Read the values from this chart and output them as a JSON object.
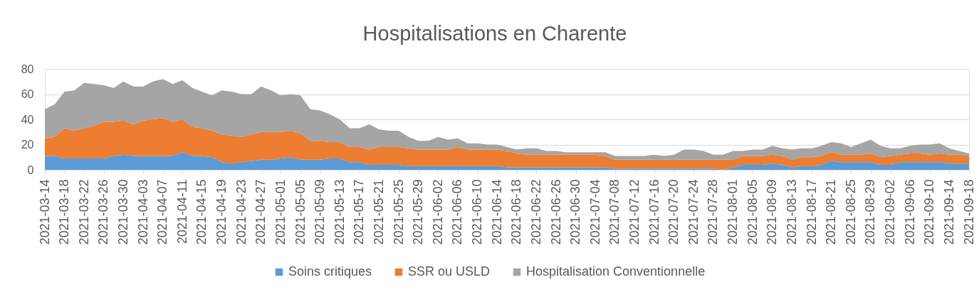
{
  "chart_data": {
    "type": "area",
    "title": "Hospitalisations en Charente",
    "stacked": true,
    "grid": "y",
    "legend": "bottom",
    "x": [
      "2021-03-14",
      "2021-03-16",
      "2021-03-18",
      "2021-03-20",
      "2021-03-22",
      "2021-03-24",
      "2021-03-26",
      "2021-03-28",
      "2021-03-30",
      "2021-04-01",
      "2021-04-03",
      "2021-04-05",
      "2021-04-07",
      "2021-04-09",
      "2021-04-11",
      "2021-04-13",
      "2021-04-15",
      "2021-04-17",
      "2021-04-19",
      "2021-04-21",
      "2021-04-23",
      "2021-04-25",
      "2021-04-27",
      "2021-04-29",
      "2021-05-01",
      "2021-05-03",
      "2021-05-05",
      "2021-05-07",
      "2021-05-09",
      "2021-05-11",
      "2021-05-13",
      "2021-05-15",
      "2021-05-17",
      "2021-05-19",
      "2021-05-21",
      "2021-05-23",
      "2021-05-25",
      "2021-05-27",
      "2021-05-29",
      "2021-05-31",
      "2021-06-02",
      "2021-06-04",
      "2021-06-06",
      "2021-06-08",
      "2021-06-10",
      "2021-06-12",
      "2021-06-14",
      "2021-06-16",
      "2021-06-18",
      "2021-06-20",
      "2021-06-22",
      "2021-06-24",
      "2021-06-26",
      "2021-06-28",
      "2021-06-30",
      "2021-07-02",
      "2021-07-04",
      "2021-07-06",
      "2021-07-08",
      "2021-07-10",
      "2021-07-12",
      "2021-07-14",
      "2021-07-16",
      "2021-07-18",
      "2021-07-20",
      "2021-07-22",
      "2021-07-24",
      "2021-07-26",
      "2021-07-28",
      "2021-07-30",
      "2021-08-01",
      "2021-08-03",
      "2021-08-05",
      "2021-08-07",
      "2021-08-09",
      "2021-08-11",
      "2021-08-13",
      "2021-08-15",
      "2021-08-17",
      "2021-08-19",
      "2021-08-21",
      "2021-08-23",
      "2021-08-25",
      "2021-08-27",
      "2021-08-29",
      "2021-08-31",
      "2021-09-02",
      "2021-09-04",
      "2021-09-06",
      "2021-09-08",
      "2021-09-10",
      "2021-09-12",
      "2021-09-14",
      "2021-09-16",
      "2021-09-18"
    ],
    "xlim": [
      "2021-03-14",
      "2021-09-18"
    ],
    "xticks": [
      "2021-03-14",
      "2021-03-18",
      "2021-03-22",
      "2021-03-26",
      "2021-03-30",
      "2021-04-03",
      "2021-04-07",
      "2021-04-11",
      "2021-04-15",
      "2021-04-19",
      "2021-04-23",
      "2021-04-27",
      "2021-05-01",
      "2021-05-05",
      "2021-05-09",
      "2021-05-13",
      "2021-05-17",
      "2021-05-21",
      "2021-05-25",
      "2021-05-29",
      "2021-06-02",
      "2021-06-06",
      "2021-06-10",
      "2021-06-14",
      "2021-06-18",
      "2021-06-22",
      "2021-06-26",
      "2021-06-30",
      "2021-07-04",
      "2021-07-08",
      "2021-07-12",
      "2021-07-16",
      "2021-07-20",
      "2021-07-24",
      "2021-07-28",
      "2021-08-01",
      "2021-08-05",
      "2021-08-09",
      "2021-08-13",
      "2021-08-17",
      "2021-08-21",
      "2021-08-25",
      "2021-08-29",
      "2021-09-02",
      "2021-09-06",
      "2021-09-10",
      "2021-09-14",
      "2021-09-18"
    ],
    "ylim": [
      0,
      80
    ],
    "yticks": [
      0,
      20,
      40,
      60,
      80
    ],
    "series": [
      {
        "name": "Soins critiques",
        "color": "#5b9bd5",
        "values": [
          11,
          11,
          9,
          9,
          9,
          9,
          9,
          11,
          12,
          11,
          11,
          11,
          11,
          11,
          14,
          11,
          11,
          10,
          6,
          5,
          6,
          7,
          8,
          8,
          9,
          10,
          8,
          8,
          8,
          9,
          9,
          6,
          6,
          4,
          4,
          4,
          4,
          3,
          3,
          3,
          3,
          3,
          3,
          3,
          3,
          3,
          3,
          2,
          2,
          2,
          2,
          2,
          2,
          2,
          2,
          2,
          2,
          2,
          1,
          1,
          1,
          1,
          1,
          1,
          1,
          1,
          1,
          1,
          1,
          0,
          2,
          4,
          4,
          4,
          5,
          4,
          2,
          3,
          3,
          4,
          7,
          6,
          6,
          6,
          6,
          4,
          4,
          6,
          6,
          6,
          6,
          6,
          5,
          5,
          5
        ]
      },
      {
        "name": "SSR ou USLD",
        "color": "#ed7d31",
        "values": [
          14,
          15,
          24,
          22,
          24,
          26,
          29,
          27,
          27,
          25,
          28,
          29,
          30,
          27,
          26,
          23,
          22,
          21,
          22,
          22,
          20,
          21,
          22,
          22,
          21,
          21,
          21,
          15,
          15,
          13,
          13,
          12,
          12,
          12,
          14,
          14,
          14,
          14,
          13,
          13,
          13,
          13,
          15,
          13,
          13,
          13,
          13,
          13,
          11,
          10,
          10,
          10,
          10,
          10,
          10,
          10,
          10,
          9,
          7,
          7,
          7,
          7,
          7,
          7,
          7,
          7,
          7,
          7,
          7,
          8,
          6,
          7,
          7,
          7,
          7,
          7,
          6,
          7,
          7,
          7,
          7,
          6,
          6,
          6,
          7,
          6,
          7,
          6,
          7,
          7,
          6,
          7,
          7,
          7,
          6
        ]
      },
      {
        "name": "Hospitalisation Conventionnelle",
        "color": "#a5a5a5",
        "values": [
          23,
          26,
          29,
          32,
          36,
          33,
          29,
          27,
          31,
          30,
          27,
          30,
          31,
          30,
          31,
          31,
          29,
          28,
          35,
          35,
          34,
          32,
          36,
          33,
          29,
          29,
          30,
          25,
          24,
          22,
          18,
          15,
          15,
          20,
          14,
          13,
          13,
          9,
          7,
          7,
          10,
          8,
          7,
          5,
          5,
          4,
          4,
          3,
          3,
          5,
          5,
          3,
          3,
          2,
          2,
          2,
          2,
          3,
          3,
          3,
          3,
          3,
          4,
          3,
          4,
          8,
          8,
          7,
          4,
          4,
          7,
          4,
          5,
          5,
          7,
          6,
          8,
          7,
          7,
          8,
          8,
          9,
          6,
          9,
          11,
          9,
          6,
          5,
          6,
          7,
          8,
          8,
          5,
          3,
          2
        ]
      }
    ]
  }
}
